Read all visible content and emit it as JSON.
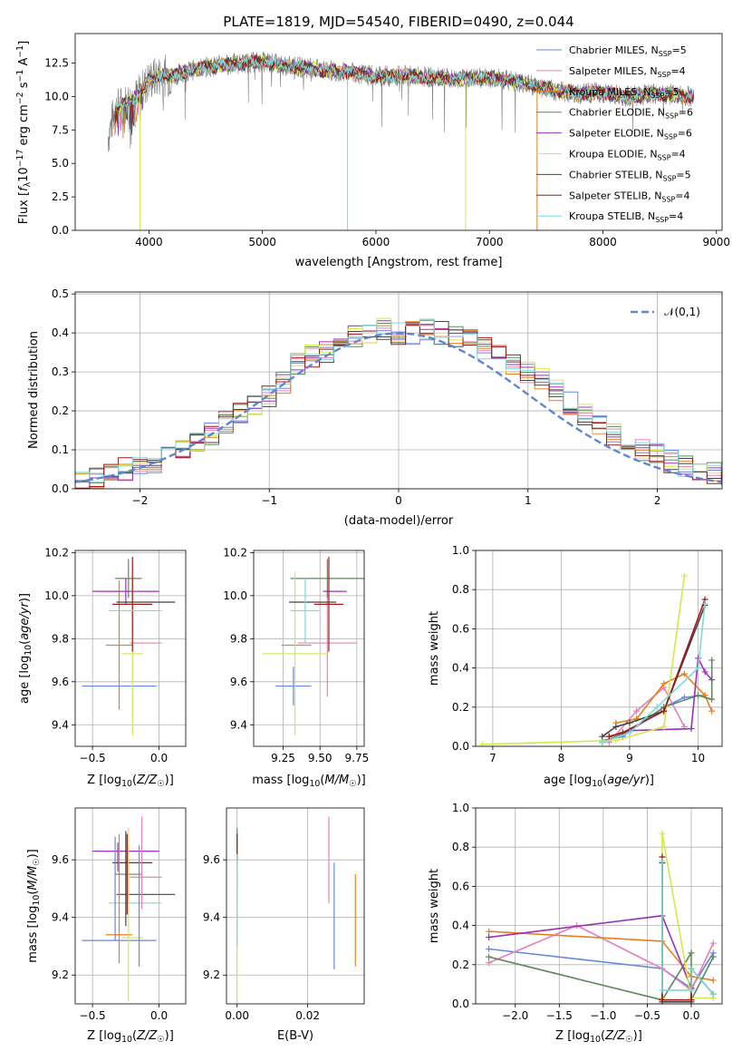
{
  "title": "PLATE=1819, MJD=54540, FIBERID=0490, z=0.044",
  "colors": {
    "c0": "#6688dd",
    "c1": "#e87fba",
    "c2": "#e5801e",
    "c3": "#5b8a5b",
    "c4": "#9b30b8",
    "c5": "#d4e84a",
    "c6": "#444444",
    "c7": "#a01818",
    "c8": "#7fd8d8",
    "gauss": "#5e86d2",
    "spec": "#808080"
  },
  "chart_data": [
    {
      "type": "line",
      "title": "PLATE=1819, MJD=54540, FIBERID=0490, z=0.044",
      "xlabel": "wavelength [Angstrom, rest frame]",
      "ylabel": "Flux [f_λ 10^-17 erg cm^-2 s^-1 A^-1]",
      "xlim": [
        3350,
        9050
      ],
      "ylim": [
        0,
        14.7
      ],
      "xticks": [
        "4000",
        "5000",
        "6000",
        "7000",
        "8000",
        "9000"
      ],
      "yticks": [
        "0.0",
        "2.5",
        "5.0",
        "7.5",
        "10.0",
        "12.5"
      ],
      "legend": "upper-right",
      "legend_entries": [
        "Chabrier MILES, N_SSP=5",
        "Salpeter MILES, N_SSP=4",
        "Kroupa MILES, N_SSP=5",
        "Chabrier ELODIE, N_SSP=6",
        "Salpeter ELODIE, N_SSP=6",
        "Kroupa ELODIE, N_SSP=4",
        "Chabrier STELIB, N_SSP=5",
        "Salpeter STELIB, N_SSP=4",
        "Kroupa STELIB, N_SSP=4"
      ],
      "spectrum_envelope": {
        "x": [
          3640,
          3700,
          3800,
          3900,
          4000,
          4100,
          4200,
          4300,
          4500,
          4700,
          5000,
          5200,
          5500,
          5800,
          6000,
          6200,
          6500,
          6700,
          7000,
          7200,
          7400,
          7600,
          7800,
          8000,
          8200,
          8500,
          8800
        ],
        "y": [
          7.0,
          9.0,
          9.5,
          10.0,
          11.2,
          11.6,
          11.5,
          11.8,
          12.2,
          12.4,
          12.6,
          12.3,
          12.0,
          11.8,
          11.5,
          11.6,
          11.4,
          11.3,
          11.4,
          11.2,
          10.8,
          10.4,
          10.2,
          10.3,
          10.0,
          10.2,
          10.0
        ]
      }
    },
    {
      "type": "histogram",
      "xlabel": "(data-model)/error",
      "ylabel": "Normed distribution",
      "xlim": [
        -2.5,
        2.5
      ],
      "ylim": [
        0,
        0.505
      ],
      "xticks": [
        "−2",
        "−1",
        "0",
        "1",
        "2"
      ],
      "yticks": [
        "0.0",
        "0.1",
        "0.2",
        "0.3",
        "0.4",
        "0.5"
      ],
      "bin_width": 0.111,
      "legend_entries": [
        "𝒩(0,1)"
      ],
      "base_density": [
        0.02,
        0.03,
        0.04,
        0.05,
        0.06,
        0.07,
        0.09,
        0.1,
        0.12,
        0.14,
        0.17,
        0.19,
        0.21,
        0.24,
        0.27,
        0.32,
        0.34,
        0.35,
        0.37,
        0.39,
        0.4,
        0.41,
        0.4,
        0.4,
        0.41,
        0.4,
        0.39,
        0.38,
        0.36,
        0.34,
        0.32,
        0.3,
        0.28,
        0.25,
        0.22,
        0.19,
        0.16,
        0.14,
        0.12,
        0.1,
        0.09,
        0.07,
        0.06,
        0.05,
        0.04,
        0.03
      ]
    },
    {
      "type": "scatter",
      "xlabel": "Z [log10(Z/Z☉)]",
      "ylabel": "age  [log10(age/yr)]",
      "xlim": [
        -0.63,
        0.2
      ],
      "ylim": [
        9.3,
        10.21
      ],
      "xticks": [
        "−0.5",
        "0.0"
      ],
      "yticks": [
        "9.4",
        "9.6",
        "9.8",
        "10.0",
        "10.2"
      ],
      "points": [
        {
          "c": "c0",
          "x": -0.3,
          "xe": 0.28,
          "y": 9.58,
          "ye": 0.0
        },
        {
          "c": "c1",
          "x": -0.1,
          "xe": 0.12,
          "y": 9.78,
          "ye": 0.0
        },
        {
          "c": "c2",
          "x": -0.3,
          "xe": 0.1,
          "y": 9.77,
          "ye": 0.3
        },
        {
          "c": "c3",
          "x": -0.23,
          "xe": 0.1,
          "y": 10.08,
          "ye": 0.09
        },
        {
          "c": "c4",
          "x": -0.25,
          "xe": 0.25,
          "y": 10.02,
          "ye": 0.06
        },
        {
          "c": "c5",
          "x": -0.2,
          "xe": 0.08,
          "y": 9.73,
          "ye": 0.38
        },
        {
          "c": "c6",
          "x": -0.1,
          "xe": 0.22,
          "y": 9.97,
          "ye": 0.0
        },
        {
          "c": "c7",
          "x": -0.2,
          "xe": 0.15,
          "y": 9.96,
          "ye": 0.22
        },
        {
          "c": "c8",
          "x": -0.18,
          "xe": 0.2,
          "y": 9.93,
          "ye": 0.0
        }
      ]
    },
    {
      "type": "scatter",
      "xlabel": "mass [log10(M/M☉)]",
      "ylabel": "",
      "xlim": [
        9.05,
        9.8
      ],
      "ylim": [
        9.3,
        10.21
      ],
      "xticks": [
        "9.25",
        "9.50",
        "9.75"
      ],
      "yticks": [
        "9.4",
        "9.6",
        "9.8",
        "10.0",
        "10.2"
      ],
      "points": [
        {
          "c": "c0",
          "x": 9.32,
          "xe": 0.12,
          "y": 9.58,
          "ye": 0.09
        },
        {
          "c": "c1",
          "x": 9.55,
          "xe": 0.2,
          "y": 9.78,
          "ye": 0.25
        },
        {
          "c": "c2",
          "x": 9.34,
          "xe": 0.1,
          "y": 9.77,
          "ye": 0.0
        },
        {
          "c": "c3",
          "x": 9.55,
          "xe": 0.25,
          "y": 10.08,
          "ye": 0.09
        },
        {
          "c": "c4",
          "x": 9.6,
          "xe": 0.08,
          "y": 10.02,
          "ye": 0.0
        },
        {
          "c": "c5",
          "x": 9.33,
          "xe": 0.22,
          "y": 9.73,
          "ye": 0.38
        },
        {
          "c": "c6",
          "x": 9.45,
          "xe": 0.16,
          "y": 9.97,
          "ye": 0.0
        },
        {
          "c": "c7",
          "x": 9.56,
          "xe": 0.1,
          "y": 9.96,
          "ye": 0.22
        },
        {
          "c": "c8",
          "x": 9.4,
          "xe": 0.1,
          "y": 9.93,
          "ye": 0.15
        }
      ]
    },
    {
      "type": "line",
      "xlabel": "age  [log10(age/yr)]",
      "ylabel": "mass weight",
      "xlim": [
        6.75,
        10.35
      ],
      "ylim": [
        0,
        1.0
      ],
      "xticks": [
        "7",
        "8",
        "9",
        "10"
      ],
      "yticks": [
        "0.0",
        "0.2",
        "0.4",
        "0.6",
        "0.8",
        "1.0"
      ],
      "series": [
        {
          "c": "c0",
          "x": [
            8.6,
            8.9,
            9.5,
            9.8,
            10.1
          ],
          "y": [
            0.03,
            0.05,
            0.2,
            0.25,
            0.26
          ]
        },
        {
          "c": "c1",
          "x": [
            8.7,
            9.1,
            9.5,
            9.8
          ],
          "y": [
            0.02,
            0.18,
            0.3,
            0.1
          ]
        },
        {
          "c": "c2",
          "x": [
            8.8,
            9.1,
            9.5,
            9.8,
            10.1,
            10.2
          ],
          "y": [
            0.12,
            0.14,
            0.32,
            0.37,
            0.26,
            0.18
          ]
        },
        {
          "c": "c3",
          "x": [
            8.6,
            9.0,
            9.5,
            10.0,
            10.2,
            10.2
          ],
          "y": [
            0.02,
            0.08,
            0.2,
            0.26,
            0.24,
            0.44
          ]
        },
        {
          "c": "c4",
          "x": [
            8.7,
            9.0,
            9.9,
            10.0,
            10.1,
            10.2
          ],
          "y": [
            0.05,
            0.08,
            0.09,
            0.45,
            0.38,
            0.34
          ]
        },
        {
          "c": "c5",
          "x": [
            6.85,
            8.8,
            9.5,
            9.8
          ],
          "y": [
            0.01,
            0.03,
            0.1,
            0.87
          ]
        },
        {
          "c": "c6",
          "x": [
            8.6,
            8.8,
            9.0,
            9.5,
            10.1
          ],
          "y": [
            0.05,
            0.1,
            0.12,
            0.18,
            0.72
          ]
        },
        {
          "c": "c7",
          "x": [
            8.7,
            8.9,
            9.5,
            10.1
          ],
          "y": [
            0.05,
            0.07,
            0.18,
            0.75
          ]
        },
        {
          "c": "c8",
          "x": [
            8.6,
            9.0,
            9.4,
            10.0,
            10.1
          ],
          "y": [
            0.02,
            0.07,
            0.2,
            0.4,
            0.73
          ]
        }
      ]
    },
    {
      "type": "scatter",
      "xlabel": "Z [log10(Z/Z☉)]",
      "ylabel": "mass [log10(M/M☉)]",
      "xlim": [
        -0.63,
        0.2
      ],
      "ylim": [
        9.1,
        9.78
      ],
      "xticks": [
        "−0.5",
        "0.0"
      ],
      "yticks": [
        "9.2",
        "9.4",
        "9.6"
      ],
      "points": [
        {
          "c": "c0",
          "x": -0.3,
          "xe": 0.28,
          "y": 9.32,
          "ye": 0.0
        },
        {
          "c": "c1",
          "x": -0.1,
          "xe": 0.12,
          "y": 9.54,
          "ye": 0.0
        },
        {
          "c": "c2",
          "x": -0.3,
          "xe": 0.1,
          "y": 9.34,
          "ye": 0.0
        },
        {
          "c": "c3",
          "x": -0.23,
          "xe": 0.1,
          "y": 9.55,
          "ye": 0.0
        },
        {
          "c": "c4",
          "x": -0.25,
          "xe": 0.25,
          "y": 9.63,
          "ye": 0.0
        },
        {
          "c": "c5",
          "x": -0.2,
          "xe": 0.08,
          "y": 9.33,
          "ye": 0.0
        },
        {
          "c": "c6",
          "x": -0.1,
          "xe": 0.22,
          "y": 9.48,
          "ye": 0.0
        },
        {
          "c": "c7",
          "x": -0.2,
          "xe": 0.15,
          "y": 9.59,
          "ye": 0.0
        },
        {
          "c": "c8",
          "x": -0.18,
          "xe": 0.2,
          "y": 9.45,
          "ye": 0.0
        }
      ],
      "vbars": [
        {
          "c": "c0",
          "x": -0.33,
          "y0": 9.32,
          "y1": 9.68
        },
        {
          "c": "c2",
          "x": -0.3,
          "y0": 9.24,
          "y1": 9.69
        },
        {
          "c": "c3",
          "x": -0.23,
          "y0": 9.45,
          "y1": 9.65
        },
        {
          "c": "c4",
          "x": -0.31,
          "y0": 9.56,
          "y1": 9.66
        },
        {
          "c": "c5",
          "x": -0.23,
          "y0": 9.11,
          "y1": 9.71
        },
        {
          "c": "c6",
          "x": -0.25,
          "y0": 9.37,
          "y1": 9.7
        },
        {
          "c": "c7",
          "x": -0.24,
          "y0": 9.41,
          "y1": 9.69
        },
        {
          "c": "c0",
          "x": -0.15,
          "y0": 9.23,
          "y1": 9.65
        },
        {
          "c": "c1",
          "x": -0.13,
          "y0": 9.43,
          "y1": 9.75
        }
      ]
    },
    {
      "type": "scatter",
      "xlabel": "E(B-V)",
      "ylabel": "",
      "xlim": [
        -0.003,
        0.036
      ],
      "ylim": [
        9.1,
        9.78
      ],
      "xticks": [
        "0.00",
        "0.02"
      ],
      "yticks": [
        "9.2",
        "9.4",
        "9.6"
      ],
      "vbars": [
        {
          "c": "c3",
          "x": 0.0,
          "y0": 9.48,
          "y1": 9.71
        },
        {
          "c": "c7",
          "x": 0.0,
          "y0": 9.58,
          "y1": 9.69
        },
        {
          "c": "c5",
          "x": 0.0,
          "y0": 9.1,
          "y1": 9.6
        },
        {
          "c": "c8",
          "x": 0.0,
          "y0": 9.3,
          "y1": 9.62
        },
        {
          "c": "c1",
          "x": 0.026,
          "y0": 9.45,
          "y1": 9.75
        },
        {
          "c": "c0",
          "x": 0.0275,
          "y0": 9.22,
          "y1": 9.59
        },
        {
          "c": "c2",
          "x": 0.0335,
          "y0": 9.23,
          "y1": 9.55
        }
      ]
    },
    {
      "type": "line",
      "xlabel": "Z [log10(Z/Z☉)]",
      "ylabel": "mass weight",
      "xlim": [
        -2.45,
        0.35
      ],
      "ylim": [
        0,
        1.0
      ],
      "xticks": [
        "−2.0",
        "−1.5",
        "−1.0",
        "−0.5",
        "0.0"
      ],
      "yticks": [
        "0.0",
        "0.2",
        "0.4",
        "0.6",
        "0.8",
        "1.0"
      ],
      "series": [
        {
          "c": "c0",
          "x": [
            -2.3,
            -0.33,
            0.0,
            0.25
          ],
          "y": [
            0.28,
            0.18,
            0.08,
            0.26
          ]
        },
        {
          "c": "c1",
          "x": [
            -2.3,
            -1.3,
            -0.33,
            0.0,
            0.25
          ],
          "y": [
            0.21,
            0.4,
            0.18,
            0.07,
            0.31
          ]
        },
        {
          "c": "c2",
          "x": [
            -2.3,
            -0.33,
            0.0,
            0.25
          ],
          "y": [
            0.37,
            0.32,
            0.14,
            0.12
          ]
        },
        {
          "c": "c3",
          "x": [
            -2.3,
            -0.33,
            0.0,
            0.0,
            0.25
          ],
          "y": [
            0.24,
            0.02,
            0.26,
            0.02,
            0.24
          ]
        },
        {
          "c": "c4",
          "x": [
            -2.3,
            -0.33,
            0.0,
            0.0
          ],
          "y": [
            0.34,
            0.45,
            0.08,
            0.08
          ]
        },
        {
          "c": "c5",
          "x": [
            -0.33,
            -0.33,
            0.0,
            0.25
          ],
          "y": [
            0.03,
            0.87,
            0.03,
            0.03
          ]
        },
        {
          "c": "c6",
          "x": [
            -0.33,
            -0.33,
            0.0,
            0.0,
            0.25
          ],
          "y": [
            0.72,
            0.01,
            0.01,
            0.18,
            0.05
          ]
        },
        {
          "c": "c7",
          "x": [
            -0.33,
            -0.33,
            0.0,
            0.0
          ],
          "y": [
            0.75,
            0.02,
            0.02,
            0.18
          ]
        },
        {
          "c": "c8",
          "x": [
            -0.33,
            -0.33,
            0.0,
            0.0,
            0.25
          ],
          "y": [
            0.73,
            0.07,
            0.07,
            0.18,
            0.05
          ]
        }
      ]
    }
  ]
}
